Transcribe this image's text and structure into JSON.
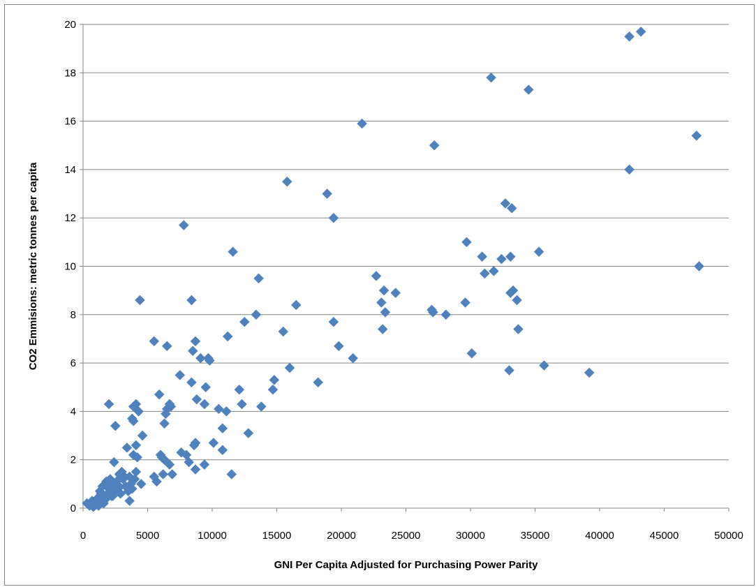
{
  "chart_data": {
    "type": "scatter",
    "title": "",
    "xlabel": "GNI Per Capita  Adjusted for Purchasing  Power Parity",
    "ylabel": "CO2 Emmisions:  metric tonnes per capita",
    "xlim": [
      0,
      50000
    ],
    "ylim": [
      0,
      20
    ],
    "xticks": [
      0,
      5000,
      10000,
      15000,
      20000,
      25000,
      30000,
      35000,
      40000,
      45000,
      50000
    ],
    "yticks": [
      0,
      2,
      4,
      6,
      8,
      10,
      12,
      14,
      16,
      18,
      20
    ],
    "grid": "horizontal",
    "legend": "none",
    "marker": "diamond",
    "marker_color": "#4F81BD",
    "series": [
      {
        "name": "",
        "points": [
          [
            43200,
            19.7
          ],
          [
            42300,
            19.5
          ],
          [
            31600,
            17.8
          ],
          [
            34500,
            17.3
          ],
          [
            21600,
            15.9
          ],
          [
            47500,
            15.4
          ],
          [
            27200,
            15.0
          ],
          [
            42300,
            14.0
          ],
          [
            15800,
            13.5
          ],
          [
            18900,
            13.0
          ],
          [
            32700,
            12.6
          ],
          [
            33200,
            12.4
          ],
          [
            19400,
            12.0
          ],
          [
            7800,
            11.7
          ],
          [
            29700,
            11.0
          ],
          [
            11600,
            10.6
          ],
          [
            35300,
            10.6
          ],
          [
            30900,
            10.4
          ],
          [
            32400,
            10.3
          ],
          [
            33100,
            10.4
          ],
          [
            47700,
            10.0
          ],
          [
            31100,
            9.7
          ],
          [
            31800,
            9.8
          ],
          [
            22700,
            9.6
          ],
          [
            13600,
            9.5
          ],
          [
            23300,
            9.0
          ],
          [
            24200,
            8.9
          ],
          [
            33300,
            9.0
          ],
          [
            33100,
            8.9
          ],
          [
            4400,
            8.6
          ],
          [
            8400,
            8.6
          ],
          [
            23100,
            8.5
          ],
          [
            33600,
            8.6
          ],
          [
            16500,
            8.4
          ],
          [
            29600,
            8.5
          ],
          [
            27000,
            8.2
          ],
          [
            27100,
            8.1
          ],
          [
            23400,
            8.1
          ],
          [
            28100,
            8.0
          ],
          [
            13400,
            8.0
          ],
          [
            12500,
            7.7
          ],
          [
            19400,
            7.7
          ],
          [
            23200,
            7.4
          ],
          [
            33700,
            7.4
          ],
          [
            15500,
            7.3
          ],
          [
            11200,
            7.1
          ],
          [
            5500,
            6.9
          ],
          [
            8700,
            6.9
          ],
          [
            6500,
            6.7
          ],
          [
            19800,
            6.7
          ],
          [
            8500,
            6.5
          ],
          [
            30100,
            6.4
          ],
          [
            9100,
            6.2
          ],
          [
            9700,
            6.2
          ],
          [
            9800,
            6.1
          ],
          [
            20900,
            6.2
          ],
          [
            35700,
            5.9
          ],
          [
            16000,
            5.8
          ],
          [
            33000,
            5.7
          ],
          [
            39200,
            5.6
          ],
          [
            7500,
            5.5
          ],
          [
            8400,
            5.2
          ],
          [
            14800,
            5.3
          ],
          [
            18200,
            5.2
          ],
          [
            9500,
            5.0
          ],
          [
            14700,
            4.9
          ],
          [
            12100,
            4.9
          ],
          [
            5900,
            4.7
          ],
          [
            8800,
            4.5
          ],
          [
            2000,
            4.3
          ],
          [
            4100,
            4.3
          ],
          [
            6700,
            4.3
          ],
          [
            3900,
            4.2
          ],
          [
            6800,
            4.2
          ],
          [
            9400,
            4.3
          ],
          [
            12300,
            4.3
          ],
          [
            13800,
            4.2
          ],
          [
            6500,
            4.1
          ],
          [
            4300,
            4.0
          ],
          [
            10500,
            4.1
          ],
          [
            11100,
            4.0
          ],
          [
            6400,
            3.9
          ],
          [
            3800,
            3.7
          ],
          [
            3900,
            3.6
          ],
          [
            6300,
            3.5
          ],
          [
            2500,
            3.4
          ],
          [
            10800,
            3.3
          ],
          [
            12800,
            3.1
          ],
          [
            4600,
            3.0
          ],
          [
            3400,
            2.5
          ],
          [
            4100,
            2.6
          ],
          [
            8600,
            2.6
          ],
          [
            8700,
            2.7
          ],
          [
            10100,
            2.7
          ],
          [
            10800,
            2.4
          ],
          [
            7600,
            2.3
          ],
          [
            3900,
            2.2
          ],
          [
            6000,
            2.2
          ],
          [
            6100,
            2.1
          ],
          [
            8000,
            2.2
          ],
          [
            4200,
            2.1
          ],
          [
            6300,
            2.0
          ],
          [
            2400,
            1.9
          ],
          [
            8200,
            1.9
          ],
          [
            9400,
            1.8
          ],
          [
            6700,
            1.8
          ],
          [
            8700,
            1.6
          ],
          [
            4100,
            1.5
          ],
          [
            2800,
            1.4
          ],
          [
            5500,
            1.3
          ],
          [
            6200,
            1.4
          ],
          [
            6900,
            1.4
          ],
          [
            11500,
            1.4
          ],
          [
            3600,
            1.3
          ],
          [
            2100,
            1.2
          ],
          [
            3100,
            1.2
          ],
          [
            5700,
            1.1
          ],
          [
            1700,
            1.0
          ],
          [
            2300,
            1.0
          ],
          [
            3700,
            1.0
          ],
          [
            4500,
            1.0
          ],
          [
            1500,
            0.9
          ],
          [
            2800,
            0.9
          ],
          [
            3300,
            0.9
          ],
          [
            2000,
            0.8
          ],
          [
            3800,
            0.8
          ],
          [
            1300,
            0.7
          ],
          [
            2500,
            0.7
          ],
          [
            3500,
            0.7
          ],
          [
            1900,
            0.6
          ],
          [
            2900,
            0.6
          ],
          [
            1500,
            0.5
          ],
          [
            2200,
            0.5
          ],
          [
            1100,
            0.4
          ],
          [
            1800,
            0.4
          ],
          [
            3600,
            0.3
          ],
          [
            700,
            0.3
          ],
          [
            1400,
            0.3
          ],
          [
            300,
            0.2
          ],
          [
            900,
            0.2
          ],
          [
            1600,
            0.2
          ],
          [
            500,
            0.1
          ],
          [
            1200,
            0.1
          ],
          [
            800,
            0.05
          ],
          [
            1000,
            0.15
          ],
          [
            2100,
            0.9
          ],
          [
            2600,
            1.1
          ],
          [
            3000,
            1.5
          ],
          [
            1800,
            1.1
          ],
          [
            3200,
            1.3
          ],
          [
            2700,
            0.8
          ],
          [
            4000,
            1.2
          ],
          [
            1400,
            0.6
          ],
          [
            2300,
            0.5
          ]
        ]
      }
    ]
  }
}
